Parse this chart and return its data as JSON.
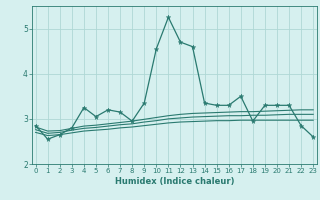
{
  "title": "",
  "xlabel": "Humidex (Indice chaleur)",
  "ylabel": "",
  "background_color": "#d6f0ef",
  "grid_color": "#afd8d5",
  "line_color": "#2a7a70",
  "x": [
    0,
    1,
    2,
    3,
    4,
    5,
    6,
    7,
    8,
    9,
    10,
    11,
    12,
    13,
    14,
    15,
    16,
    17,
    18,
    19,
    20,
    21,
    22,
    23
  ],
  "y_main": [
    2.85,
    2.55,
    2.65,
    2.8,
    3.25,
    3.05,
    3.2,
    3.15,
    2.95,
    3.35,
    4.55,
    5.25,
    4.7,
    4.6,
    3.35,
    3.3,
    3.3,
    3.5,
    2.95,
    3.3,
    3.3,
    3.3,
    2.85,
    2.6
  ],
  "y_trend_upper": [
    2.82,
    2.73,
    2.74,
    2.79,
    2.84,
    2.86,
    2.89,
    2.92,
    2.95,
    2.99,
    3.03,
    3.07,
    3.1,
    3.12,
    3.13,
    3.14,
    3.15,
    3.16,
    3.16,
    3.17,
    3.18,
    3.19,
    3.2,
    3.2
  ],
  "y_trend_mid": [
    2.76,
    2.68,
    2.7,
    2.75,
    2.79,
    2.81,
    2.84,
    2.87,
    2.89,
    2.93,
    2.96,
    3.0,
    3.02,
    3.04,
    3.05,
    3.06,
    3.07,
    3.07,
    3.08,
    3.08,
    3.09,
    3.1,
    3.1,
    3.1
  ],
  "y_trend_lower": [
    2.7,
    2.63,
    2.65,
    2.69,
    2.73,
    2.75,
    2.77,
    2.8,
    2.82,
    2.85,
    2.88,
    2.91,
    2.93,
    2.94,
    2.95,
    2.96,
    2.96,
    2.97,
    2.97,
    2.97,
    2.97,
    2.97,
    2.97,
    2.97
  ],
  "ylim": [
    2.0,
    5.5
  ],
  "yticks": [
    2,
    3,
    4,
    5
  ],
  "xticks": [
    0,
    1,
    2,
    3,
    4,
    5,
    6,
    7,
    8,
    9,
    10,
    11,
    12,
    13,
    14,
    15,
    16,
    17,
    18,
    19,
    20,
    21,
    22,
    23
  ],
  "tick_fontsize": 5.0,
  "xlabel_fontsize": 6.0
}
